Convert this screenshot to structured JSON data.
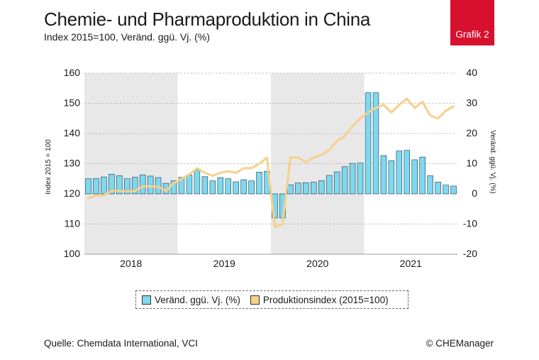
{
  "header": {
    "title": "Chemie- und Pharmaproduktion in China",
    "subtitle": "Index 2015=100, Veränd. ggü. Vj. (%)",
    "badge": "Grafik 2"
  },
  "footer": {
    "source": "Quelle: Chemdata International, VCI",
    "copyright": "© CHEManager"
  },
  "colors": {
    "bar": "#7fd8ef",
    "bar_stroke": "#1b3a4a",
    "line": "#f7d08a",
    "shade": "#e8e8e8"
  },
  "chart_data": {
    "type": "bar+line",
    "ylabel_left": "Index 2015 = 100",
    "ylabel_right": "Veränd. ggü. Vj. (%)",
    "ylim_left": [
      100,
      160
    ],
    "ylim_right": [
      -20,
      40
    ],
    "yticks_left": [
      "160",
      "150",
      "140",
      "130",
      "120",
      "110",
      "100"
    ],
    "yticks_right": [
      "40",
      "30",
      "20",
      "10",
      "0",
      "-10",
      "-20"
    ],
    "years": [
      "2018",
      "2019",
      "2020",
      "2021"
    ],
    "shaded_years": [
      "2018",
      "2020"
    ],
    "grid": true,
    "legend_position": "bottom",
    "series": [
      {
        "name": "Veränd. ggü. Vj. (%)",
        "type": "bar",
        "axis": "right",
        "values": [
          5.0,
          5.1,
          5.6,
          6.5,
          6.0,
          5.0,
          5.5,
          6.3,
          5.9,
          5.4,
          3.5,
          4.3,
          5.5,
          6.2,
          7.9,
          5.7,
          4.3,
          5.4,
          5.0,
          4.0,
          4.7,
          4.3,
          7.2,
          7.5,
          -8.0,
          -8.0,
          3.0,
          3.6,
          3.7,
          3.9,
          4.4,
          6.1,
          7.3,
          9.0,
          10.1,
          10.2,
          33.5,
          33.5,
          12.7,
          11.0,
          14.2,
          14.4,
          11.3,
          12.2,
          6.0,
          3.9,
          2.9,
          2.6
        ]
      },
      {
        "name": "Produktionsindex (2015=100)",
        "type": "line",
        "axis": "left",
        "values": [
          118.5,
          119.5,
          119.5,
          121,
          121,
          120.8,
          121,
          122.5,
          122.5,
          122.3,
          121,
          123.5,
          125,
          126.5,
          128.5,
          127,
          126,
          127,
          127.5,
          127,
          128.5,
          128.5,
          130,
          132,
          109,
          110,
          132,
          132,
          130.5,
          132,
          133,
          134.5,
          137.5,
          139,
          142.5,
          145,
          147,
          148.5,
          149.5,
          147,
          149.5,
          151.5,
          148.5,
          150.5,
          146,
          145,
          147.5,
          149
        ]
      }
    ]
  }
}
